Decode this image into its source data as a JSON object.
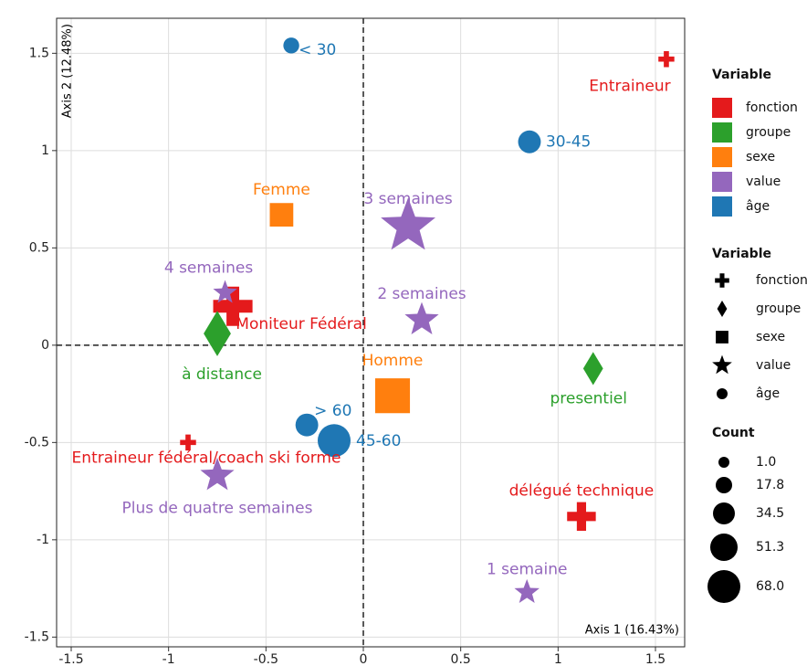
{
  "chart_data": {
    "type": "scatter",
    "x_label": "Axis 1 (16.43%)",
    "y_label": "Axis 2 (12.48%)",
    "xlim": [
      -1.575,
      1.65
    ],
    "ylim": [
      -1.55,
      1.68
    ],
    "xticks": [
      -1.5,
      -1,
      -0.5,
      0,
      0.5,
      1,
      1.5
    ],
    "yticks": [
      -1.5,
      -1,
      -0.5,
      0,
      0.5,
      1,
      1.5
    ],
    "grid": true,
    "color_legend_title": "Variable",
    "shape_legend_title": "Variable",
    "size_legend": {
      "title": "Count",
      "values": [
        1,
        17.8,
        34.5,
        51.3,
        68
      ],
      "value_labels": [
        "1.0",
        "17.8",
        "34.5",
        "51.3",
        "68.0"
      ]
    },
    "series": [
      {
        "name": "fonction",
        "color": "#e41a1c",
        "shape": "plus",
        "labels": [
          "Entraineur",
          "Moniteur Fédéral",
          "Entraineur fédéral/coach ski forme",
          "délégué technique"
        ],
        "x": [
          1.556,
          -0.67,
          -0.9,
          1.12
        ],
        "y": [
          1.47,
          0.2,
          -0.5,
          -0.88
        ],
        "size": [
          5,
          60,
          5,
          35
        ]
      },
      {
        "name": "groupe",
        "color": "#2ca02c",
        "shape": "diamond",
        "labels": [
          "à distance",
          "presentiel"
        ],
        "x": [
          -0.75,
          1.18
        ],
        "y": [
          0.06,
          -0.12
        ],
        "size": [
          60,
          35
        ]
      },
      {
        "name": "sexe",
        "color": "#ff7f0e",
        "shape": "square",
        "labels": [
          "Femme",
          "Homme"
        ],
        "x": [
          -0.42,
          0.15
        ],
        "y": [
          0.67,
          -0.26
        ],
        "size": [
          30,
          60
        ]
      },
      {
        "name": "value",
        "color": "#9467bd",
        "shape": "star",
        "labels": [
          "3 semaines",
          "4 semaines",
          "2 semaines",
          "Plus de quatre semaines",
          "1 semaine"
        ],
        "x": [
          0.23,
          -0.71,
          0.3,
          -0.75,
          0.84
        ],
        "y": [
          0.61,
          0.27,
          0.13,
          -0.67,
          -1.27
        ],
        "size": [
          60,
          8,
          25,
          25,
          10
        ]
      },
      {
        "name": "âge",
        "color": "#1f77b4",
        "shape": "circle",
        "labels": [
          "< 30",
          "30-45",
          "> 60",
          "45-60"
        ],
        "x": [
          -0.37,
          0.853,
          -0.29,
          -0.15
        ],
        "y": [
          1.54,
          1.045,
          -0.41,
          -0.49
        ],
        "size": [
          16,
          37,
          37,
          68
        ]
      }
    ]
  }
}
